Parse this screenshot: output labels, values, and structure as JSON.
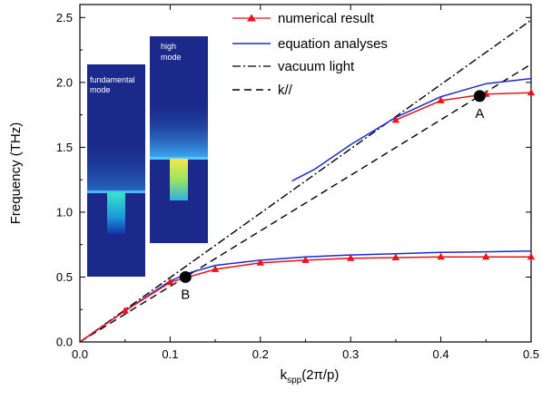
{
  "chart_data": {
    "type": "line",
    "xlabel": "k",
    "xlabel_sub": "spp",
    "xlabel_suffix": "(2π/p)",
    "ylabel": "Frequency (THz)",
    "xlim": [
      0,
      0.5
    ],
    "ylim": [
      0,
      2.6
    ],
    "xticks": [
      "0.0",
      "0.1",
      "0.2",
      "0.3",
      "0.4",
      "0.5"
    ],
    "yticks": [
      "0.0",
      "0.5",
      "1.0",
      "1.5",
      "2.0",
      "2.5"
    ],
    "grid": false,
    "legend_position": "top-right",
    "series": [
      {
        "name": "numerical result",
        "color": "#e8131b",
        "marker": "triangle",
        "style": "solid",
        "branches": [
          {
            "x": [
              0,
              0.05,
              0.1,
              0.15,
              0.2,
              0.25,
              0.3,
              0.35,
              0.4,
              0.45,
              0.5
            ],
            "y": [
              0,
              0.24,
              0.46,
              0.56,
              0.61,
              0.63,
              0.645,
              0.65,
              0.655,
              0.655,
              0.655
            ]
          },
          {
            "x": [
              0.35,
              0.4,
              0.45,
              0.5
            ],
            "y": [
              1.71,
              1.86,
              1.91,
              1.92
            ]
          }
        ]
      },
      {
        "name": "equation analyses",
        "color": "#1a2bd6",
        "marker": "none",
        "style": "solid",
        "branches": [
          {
            "x": [
              0,
              0.05,
              0.1,
              0.12,
              0.15,
              0.2,
              0.25,
              0.3,
              0.35,
              0.4,
              0.45,
              0.5
            ],
            "y": [
              0,
              0.24,
              0.47,
              0.53,
              0.59,
              0.63,
              0.655,
              0.67,
              0.68,
              0.69,
              0.695,
              0.7
            ]
          },
          {
            "x": [
              0.235,
              0.26,
              0.3,
              0.35,
              0.4,
              0.45,
              0.5
            ],
            "y": [
              1.24,
              1.33,
              1.52,
              1.73,
              1.89,
              1.99,
              2.03
            ]
          }
        ]
      },
      {
        "name": "vacuum  light",
        "color": "#000000",
        "marker": "none",
        "style": "dashdot",
        "branches": [
          {
            "x": [
              0,
              0.5
            ],
            "y": [
              0,
              2.48
            ]
          }
        ]
      },
      {
        "name": "k//",
        "color": "#000000",
        "marker": "none",
        "style": "dashed",
        "branches": [
          {
            "x": [
              0,
              0.5
            ],
            "y": [
              0,
              2.14
            ]
          }
        ]
      }
    ],
    "annotations": [
      {
        "label": "A",
        "x": 0.443,
        "y": 1.895
      },
      {
        "label": "B",
        "x": 0.117,
        "y": 0.5
      }
    ],
    "insets": [
      {
        "label_line1": "fundamental",
        "label_line2": "mode"
      },
      {
        "label_line1": "high",
        "label_line2": "mode"
      }
    ]
  }
}
